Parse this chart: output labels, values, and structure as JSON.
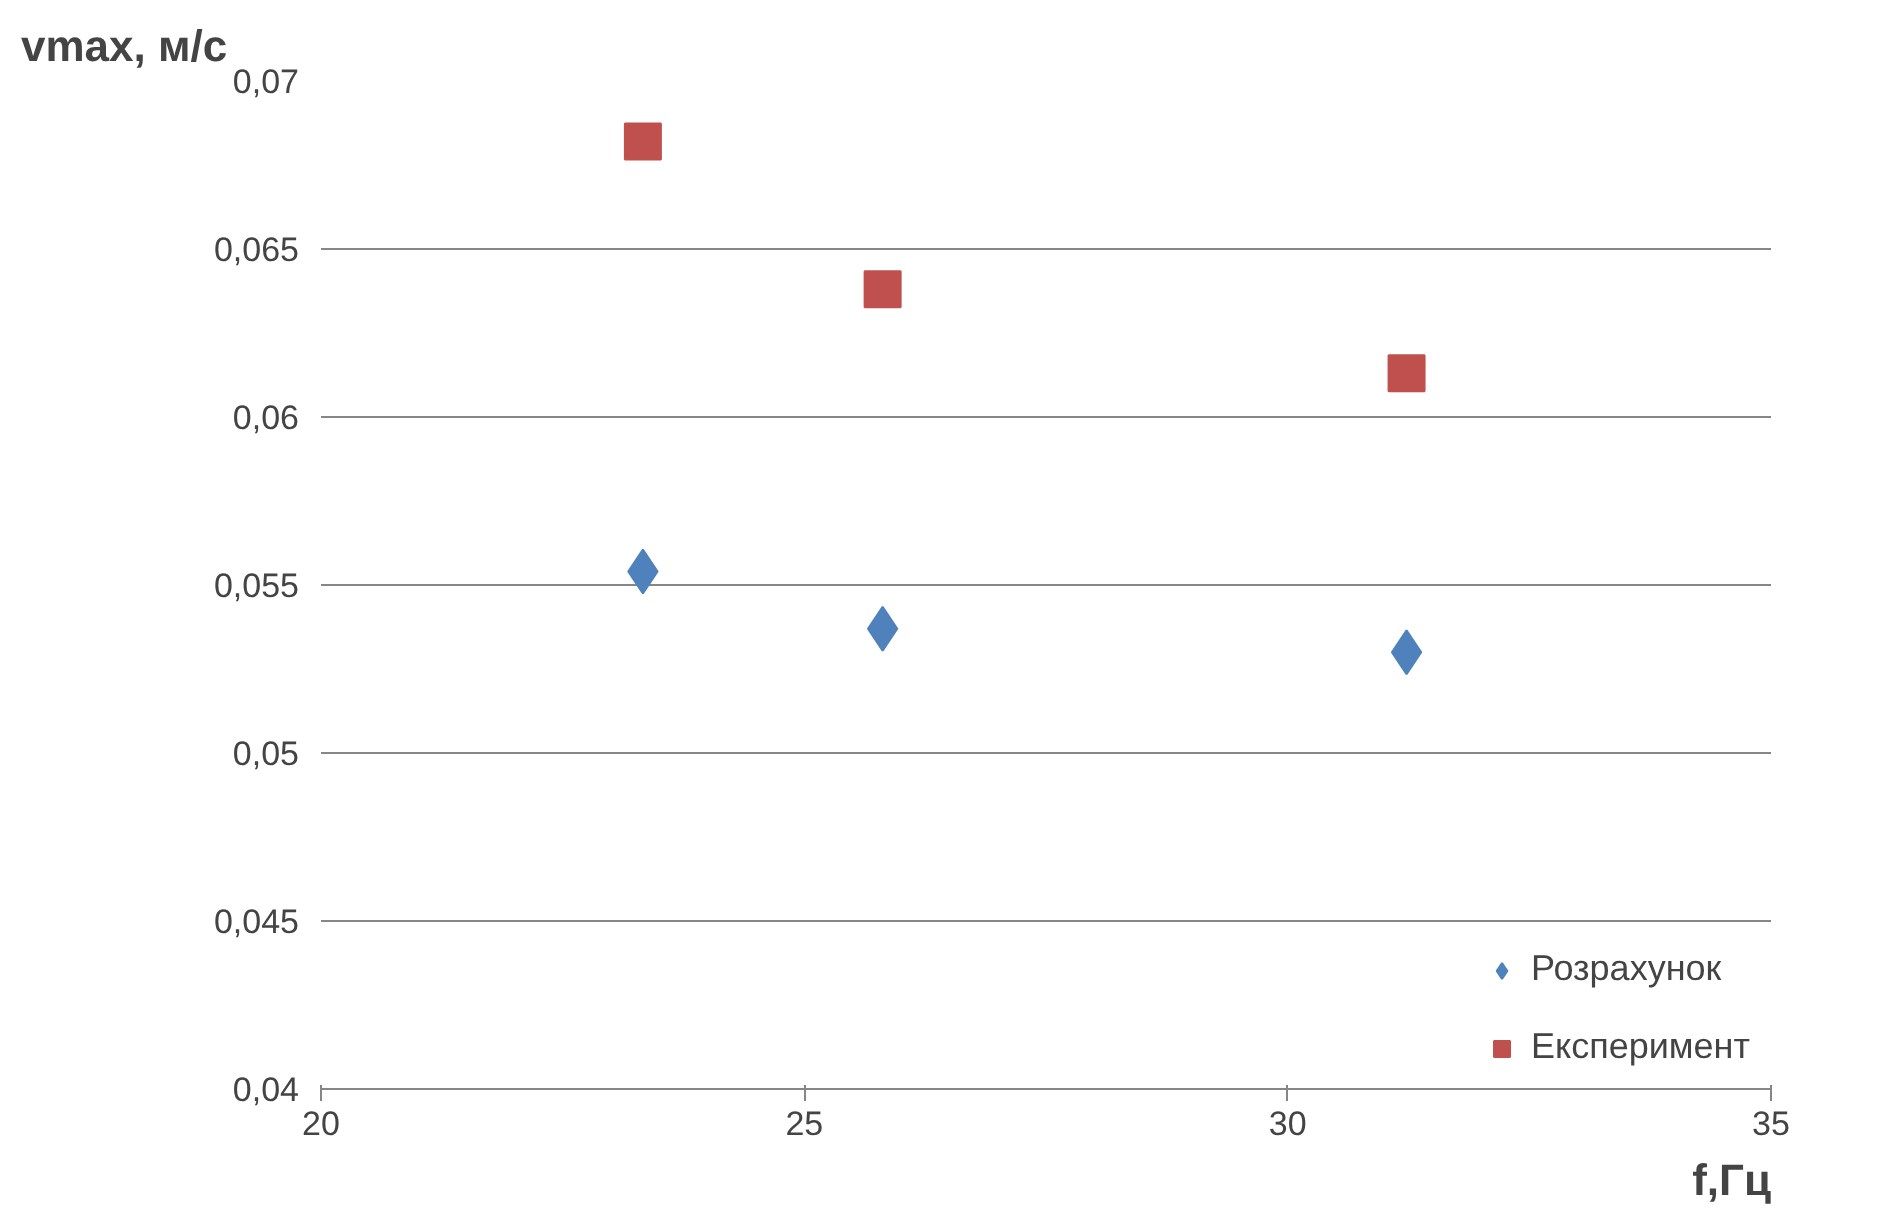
{
  "chart_data": {
    "type": "scatter",
    "xlabel": "f,Гц",
    "ylabel": "vmax, м/с",
    "xlim": [
      20,
      35
    ],
    "xticks": [
      20,
      25,
      30,
      35
    ],
    "ylim": [
      0.04,
      0.07
    ],
    "yticks": [
      {
        "value": 0.04,
        "label": "0,04"
      },
      {
        "value": 0.045,
        "label": "0,045"
      },
      {
        "value": 0.05,
        "label": "0,05"
      },
      {
        "value": 0.055,
        "label": "0,055"
      },
      {
        "value": 0.06,
        "label": "0,06"
      },
      {
        "value": 0.065,
        "label": "0,065"
      },
      {
        "value": 0.07,
        "label": "0,07"
      }
    ],
    "grid": "y",
    "legend": "bottom right",
    "series": [
      {
        "name": "Розрахунок",
        "color": "#4f81bd",
        "marker": "diamond",
        "x": [
          23.33,
          25.81,
          31.23
        ],
        "values": [
          0.0554,
          0.0537,
          0.053
        ]
      },
      {
        "name": "Експеримент",
        "color": "#c0504d",
        "marker": "square",
        "x": [
          23.33,
          25.81,
          31.23
        ],
        "values": [
          0.0682,
          0.0638,
          0.0613
        ]
      }
    ]
  }
}
